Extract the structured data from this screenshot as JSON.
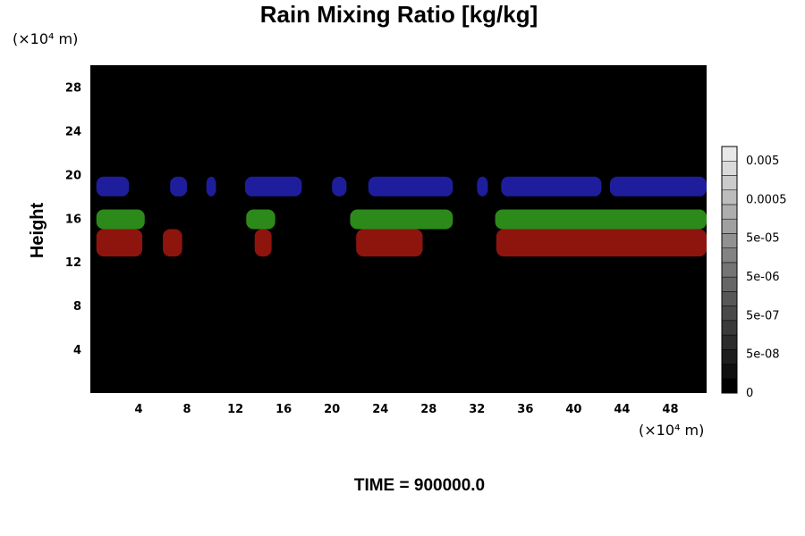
{
  "chart_data": {
    "type": "heatmap",
    "title": "Rain Mixing Ratio [kg/kg]",
    "ylabel": "Height",
    "xunit": "(×10⁴ m)",
    "yunit": "(×10⁴ m)",
    "time_label": "TIME = 900000.0",
    "xlim": [
      0,
      51
    ],
    "ylim": [
      0,
      30
    ],
    "xticks": [
      4,
      8,
      12,
      16,
      20,
      24,
      28,
      32,
      36,
      40,
      44,
      48
    ],
    "yticks": [
      4,
      8,
      12,
      16,
      20,
      24,
      28
    ],
    "background": "#000000",
    "colorbar": {
      "labels": [
        "0.005",
        "0.0005",
        "5e-05",
        "5e-06",
        "5e-07",
        "5e-08",
        "0"
      ],
      "levels": 17
    },
    "bands": [
      {
        "color": "#1e1e9c",
        "segments": [
          [
            0.5,
            3.2
          ],
          [
            6.6,
            8.0
          ],
          [
            9.6,
            10.4
          ],
          [
            12.8,
            17.5
          ],
          [
            20.0,
            21.2
          ],
          [
            23.0,
            30.0
          ],
          [
            32.0,
            32.9
          ],
          [
            34.0,
            42.3
          ],
          [
            43.0,
            51.0
          ]
        ],
        "ybottom": 18.0,
        "ytop": 19.8
      },
      {
        "color": "#2c8a1a",
        "segments": [
          [
            0.5,
            4.5
          ],
          [
            12.9,
            15.3
          ],
          [
            21.5,
            30.0
          ],
          [
            33.5,
            51.0
          ]
        ],
        "ybottom": 15.0,
        "ytop": 16.8
      },
      {
        "color": "#8e140e",
        "segments": [
          [
            0.5,
            4.3
          ],
          [
            6.0,
            7.6
          ],
          [
            13.6,
            15.0
          ],
          [
            22.0,
            27.5
          ],
          [
            33.6,
            51.0
          ]
        ],
        "ybottom": 12.5,
        "ytop": 15.0
      }
    ]
  }
}
